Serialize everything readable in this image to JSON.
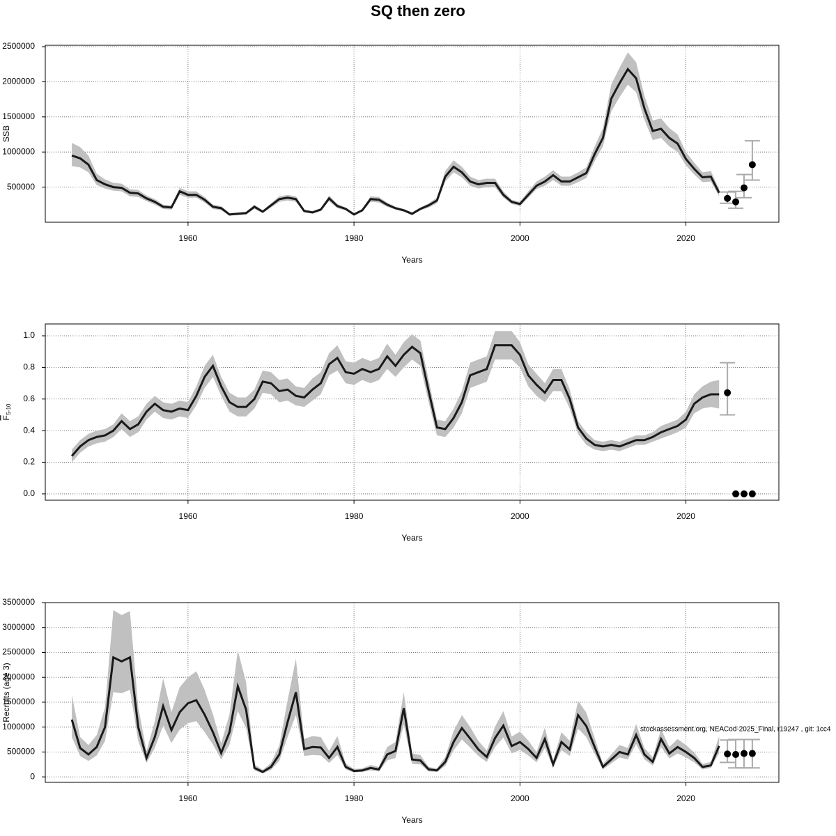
{
  "title": "SQ then zero",
  "footnote": "stockassessment.org, NEACod-2025_Final, r19247 , git: 1cc4",
  "chart_data": [
    {
      "type": "line",
      "xlabel": "Years",
      "ylabel": "SSB",
      "xlim": [
        1942.8,
        2031.2
      ],
      "xticks": [
        1960,
        1980,
        2000,
        2020
      ],
      "ylim": [
        0,
        2520000
      ],
      "yticks": [
        500000,
        1000000,
        1500000,
        2000000,
        2500000
      ],
      "grid": true,
      "line_color": "#1a1a1a",
      "band_color": "#c0c0c0",
      "point_color": "#000000",
      "errorbar_color": "#aaaaaa",
      "x": [
        1946,
        1947,
        1948,
        1949,
        1950,
        1951,
        1952,
        1953,
        1954,
        1955,
        1956,
        1957,
        1958,
        1959,
        1960,
        1961,
        1962,
        1963,
        1964,
        1965,
        1966,
        1967,
        1968,
        1969,
        1970,
        1971,
        1972,
        1973,
        1974,
        1975,
        1976,
        1977,
        1978,
        1979,
        1980,
        1981,
        1982,
        1983,
        1984,
        1985,
        1986,
        1987,
        1988,
        1989,
        1990,
        1991,
        1992,
        1993,
        1994,
        1995,
        1996,
        1997,
        1998,
        1999,
        2000,
        2001,
        2002,
        2003,
        2004,
        2005,
        2006,
        2007,
        2008,
        2009,
        2010,
        2011,
        2012,
        2013,
        2014,
        2015,
        2016,
        2017,
        2018,
        2019,
        2020,
        2021,
        2022,
        2023,
        2024
      ],
      "values": [
        950000,
        910000,
        820000,
        600000,
        540000,
        500000,
        490000,
        420000,
        410000,
        340000,
        290000,
        220000,
        210000,
        440000,
        390000,
        390000,
        320000,
        220000,
        200000,
        110000,
        120000,
        130000,
        220000,
        150000,
        240000,
        330000,
        350000,
        330000,
        160000,
        140000,
        180000,
        340000,
        230000,
        190000,
        110000,
        170000,
        330000,
        320000,
        250000,
        200000,
        170000,
        120000,
        190000,
        240000,
        310000,
        650000,
        790000,
        710000,
        580000,
        540000,
        560000,
        560000,
        390000,
        290000,
        260000,
        390000,
        520000,
        580000,
        670000,
        580000,
        580000,
        640000,
        700000,
        970000,
        1200000,
        1760000,
        1980000,
        2180000,
        2050000,
        1620000,
        1300000,
        1330000,
        1200000,
        1120000,
        900000,
        760000,
        640000,
        650000,
        420000
      ],
      "lower": [
        800000,
        780000,
        710000,
        530000,
        480000,
        450000,
        440000,
        370000,
        360000,
        300000,
        250000,
        190000,
        180000,
        390000,
        350000,
        350000,
        280000,
        190000,
        170000,
        100000,
        100000,
        110000,
        190000,
        130000,
        210000,
        290000,
        310000,
        290000,
        140000,
        120000,
        160000,
        300000,
        200000,
        170000,
        100000,
        150000,
        290000,
        280000,
        220000,
        180000,
        150000,
        100000,
        170000,
        210000,
        270000,
        580000,
        710000,
        640000,
        520000,
        480000,
        500000,
        500000,
        350000,
        260000,
        230000,
        350000,
        470000,
        520000,
        600000,
        520000,
        520000,
        570000,
        630000,
        870000,
        1080000,
        1580000,
        1780000,
        1960000,
        1850000,
        1460000,
        1170000,
        1200000,
        1080000,
        1000000,
        810000,
        680000,
        570000,
        580000,
        370000
      ],
      "upper": [
        1130000,
        1070000,
        950000,
        690000,
        610000,
        560000,
        550000,
        470000,
        460000,
        380000,
        330000,
        250000,
        240000,
        490000,
        440000,
        440000,
        360000,
        250000,
        230000,
        130000,
        140000,
        150000,
        250000,
        170000,
        270000,
        370000,
        390000,
        370000,
        180000,
        160000,
        200000,
        380000,
        260000,
        210000,
        130000,
        190000,
        370000,
        360000,
        280000,
        220000,
        190000,
        140000,
        210000,
        270000,
        350000,
        730000,
        880000,
        790000,
        650000,
        600000,
        620000,
        620000,
        440000,
        320000,
        290000,
        440000,
        580000,
        650000,
        740000,
        650000,
        650000,
        710000,
        780000,
        1080000,
        1340000,
        1960000,
        2200000,
        2420000,
        2280000,
        1800000,
        1450000,
        1480000,
        1340000,
        1250000,
        1000000,
        850000,
        710000,
        730000,
        470000
      ],
      "forecast": {
        "x": [
          2025,
          2026,
          2027,
          2028
        ],
        "values": [
          340000,
          290000,
          490000,
          820000
        ],
        "lower": [
          270000,
          200000,
          350000,
          600000
        ],
        "upper": [
          430000,
          440000,
          680000,
          1160000
        ]
      }
    },
    {
      "type": "line",
      "xlabel": "Years",
      "ylabel": "F",
      "ylabel_sub": "5-10",
      "xlim": [
        1942.8,
        2031.2
      ],
      "xticks": [
        1960,
        1980,
        2000,
        2020
      ],
      "ylim": [
        -0.04,
        1.075
      ],
      "yticks": [
        {
          "value": 0,
          "label": "0.0"
        },
        {
          "value": 0.2,
          "label": "0.2"
        },
        {
          "value": 0.4,
          "label": "0.4"
        },
        {
          "value": 0.6,
          "label": "0.6"
        },
        {
          "value": 0.8,
          "label": "0.8"
        },
        {
          "value": 1,
          "label": "1.0"
        }
      ],
      "grid": true,
      "line_color": "#1a1a1a",
      "band_color": "#c0c0c0",
      "point_color": "#000000",
      "errorbar_color": "#aaaaaa",
      "x": [
        1946,
        1947,
        1948,
        1949,
        1950,
        1951,
        1952,
        1953,
        1954,
        1955,
        1956,
        1957,
        1958,
        1959,
        1960,
        1961,
        1962,
        1963,
        1964,
        1965,
        1966,
        1967,
        1968,
        1969,
        1970,
        1971,
        1972,
        1973,
        1974,
        1975,
        1976,
        1977,
        1978,
        1979,
        1980,
        1981,
        1982,
        1983,
        1984,
        1985,
        1986,
        1987,
        1988,
        1989,
        1990,
        1991,
        1992,
        1993,
        1994,
        1995,
        1996,
        1997,
        1998,
        1999,
        2000,
        2001,
        2002,
        2003,
        2004,
        2005,
        2006,
        2007,
        2008,
        2009,
        2010,
        2011,
        2012,
        2013,
        2014,
        2015,
        2016,
        2017,
        2018,
        2019,
        2020,
        2021,
        2022,
        2023,
        2024
      ],
      "values": [
        0.24,
        0.3,
        0.34,
        0.36,
        0.37,
        0.4,
        0.46,
        0.41,
        0.44,
        0.52,
        0.57,
        0.53,
        0.52,
        0.54,
        0.53,
        0.62,
        0.74,
        0.81,
        0.68,
        0.58,
        0.55,
        0.55,
        0.6,
        0.71,
        0.7,
        0.65,
        0.66,
        0.62,
        0.61,
        0.66,
        0.7,
        0.82,
        0.86,
        0.77,
        0.76,
        0.79,
        0.77,
        0.79,
        0.87,
        0.81,
        0.88,
        0.93,
        0.89,
        0.65,
        0.42,
        0.41,
        0.48,
        0.58,
        0.75,
        0.77,
        0.79,
        0.94,
        0.94,
        0.94,
        0.88,
        0.75,
        0.69,
        0.64,
        0.72,
        0.72,
        0.6,
        0.42,
        0.35,
        0.31,
        0.3,
        0.31,
        0.3,
        0.32,
        0.34,
        0.34,
        0.36,
        0.39,
        0.41,
        0.43,
        0.47,
        0.57,
        0.61,
        0.63,
        0.63
      ],
      "lower": [
        0.2,
        0.26,
        0.3,
        0.32,
        0.33,
        0.36,
        0.41,
        0.36,
        0.39,
        0.47,
        0.52,
        0.48,
        0.47,
        0.49,
        0.48,
        0.56,
        0.67,
        0.74,
        0.62,
        0.52,
        0.49,
        0.49,
        0.54,
        0.64,
        0.63,
        0.58,
        0.59,
        0.56,
        0.55,
        0.59,
        0.63,
        0.75,
        0.78,
        0.7,
        0.69,
        0.72,
        0.7,
        0.72,
        0.79,
        0.74,
        0.8,
        0.85,
        0.81,
        0.58,
        0.37,
        0.36,
        0.42,
        0.51,
        0.67,
        0.69,
        0.71,
        0.85,
        0.85,
        0.85,
        0.8,
        0.68,
        0.62,
        0.58,
        0.65,
        0.65,
        0.54,
        0.38,
        0.31,
        0.28,
        0.27,
        0.28,
        0.27,
        0.29,
        0.31,
        0.31,
        0.33,
        0.35,
        0.37,
        0.39,
        0.42,
        0.51,
        0.54,
        0.55,
        0.54
      ],
      "upper": [
        0.28,
        0.34,
        0.38,
        0.4,
        0.41,
        0.44,
        0.51,
        0.46,
        0.49,
        0.57,
        0.62,
        0.58,
        0.57,
        0.59,
        0.58,
        0.68,
        0.81,
        0.88,
        0.74,
        0.64,
        0.61,
        0.61,
        0.66,
        0.78,
        0.77,
        0.72,
        0.73,
        0.68,
        0.67,
        0.73,
        0.77,
        0.89,
        0.94,
        0.84,
        0.83,
        0.86,
        0.84,
        0.86,
        0.95,
        0.88,
        0.96,
        1.01,
        0.97,
        0.72,
        0.47,
        0.46,
        0.54,
        0.65,
        0.83,
        0.85,
        0.87,
        1.03,
        1.03,
        1.03,
        0.96,
        0.82,
        0.76,
        0.7,
        0.79,
        0.79,
        0.66,
        0.46,
        0.39,
        0.34,
        0.33,
        0.34,
        0.33,
        0.35,
        0.37,
        0.37,
        0.39,
        0.43,
        0.45,
        0.47,
        0.52,
        0.63,
        0.68,
        0.71,
        0.72
      ],
      "forecast": {
        "x": [
          2025,
          2026,
          2027,
          2028
        ],
        "values": [
          0.64,
          0,
          0,
          0
        ],
        "lower": [
          0.5,
          null,
          null,
          null
        ],
        "upper": [
          0.83,
          null,
          null,
          null
        ]
      }
    },
    {
      "type": "line",
      "xlabel": "Years",
      "ylabel": "Recruits (age 3)",
      "xlim": [
        1942.8,
        2031.2
      ],
      "xticks": [
        1960,
        1980,
        2000,
        2020
      ],
      "ylim": [
        -110000,
        3500000
      ],
      "yticks": [
        0,
        500000,
        1000000,
        1500000,
        2000000,
        2500000,
        3000000,
        3500000
      ],
      "grid": true,
      "line_color": "#1a1a1a",
      "band_color": "#c0c0c0",
      "point_color": "#000000",
      "errorbar_color": "#aaaaaa",
      "x": [
        1946,
        1947,
        1948,
        1949,
        1950,
        1951,
        1952,
        1953,
        1954,
        1955,
        1956,
        1957,
        1958,
        1959,
        1960,
        1961,
        1962,
        1963,
        1964,
        1965,
        1966,
        1967,
        1968,
        1969,
        1970,
        1971,
        1972,
        1973,
        1974,
        1975,
        1976,
        1977,
        1978,
        1979,
        1980,
        1981,
        1982,
        1983,
        1984,
        1985,
        1986,
        1987,
        1988,
        1989,
        1990,
        1991,
        1992,
        1993,
        1994,
        1995,
        1996,
        1997,
        1998,
        1999,
        2000,
        2001,
        2002,
        2003,
        2004,
        2005,
        2006,
        2007,
        2008,
        2009,
        2010,
        2011,
        2012,
        2013,
        2014,
        2015,
        2016,
        2017,
        2018,
        2019,
        2020,
        2021,
        2022,
        2023,
        2024
      ],
      "values": [
        1150000,
        580000,
        450000,
        600000,
        1000000,
        2400000,
        2320000,
        2400000,
        1000000,
        380000,
        800000,
        1420000,
        940000,
        1300000,
        1480000,
        1540000,
        1250000,
        900000,
        480000,
        900000,
        1820000,
        1350000,
        180000,
        100000,
        200000,
        450000,
        1100000,
        1700000,
        560000,
        600000,
        590000,
        380000,
        600000,
        200000,
        120000,
        130000,
        180000,
        150000,
        450000,
        520000,
        1380000,
        350000,
        330000,
        150000,
        130000,
        300000,
        700000,
        980000,
        770000,
        550000,
        400000,
        780000,
        1030000,
        620000,
        700000,
        560000,
        380000,
        760000,
        250000,
        700000,
        550000,
        1240000,
        1020000,
        600000,
        200000,
        350000,
        500000,
        450000,
        840000,
        450000,
        300000,
        760000,
        470000,
        600000,
        500000,
        380000,
        200000,
        230000,
        620000
      ],
      "lower": [
        800000,
        420000,
        320000,
        430000,
        720000,
        1700000,
        1680000,
        1750000,
        720000,
        280000,
        580000,
        1030000,
        680000,
        950000,
        1080000,
        1120000,
        900000,
        650000,
        350000,
        650000,
        1320000,
        980000,
        130000,
        70000,
        140000,
        320000,
        800000,
        1240000,
        420000,
        440000,
        430000,
        280000,
        440000,
        150000,
        90000,
        100000,
        130000,
        110000,
        330000,
        380000,
        1050000,
        260000,
        250000,
        110000,
        100000,
        220000,
        530000,
        750000,
        590000,
        420000,
        300000,
        600000,
        790000,
        470000,
        540000,
        430000,
        290000,
        580000,
        190000,
        540000,
        420000,
        970000,
        800000,
        460000,
        150000,
        270000,
        390000,
        350000,
        660000,
        350000,
        230000,
        600000,
        370000,
        470000,
        390000,
        290000,
        150000,
        180000,
        480000
      ],
      "upper": [
        1650000,
        800000,
        640000,
        840000,
        1400000,
        3350000,
        3250000,
        3330000,
        1400000,
        520000,
        1120000,
        1980000,
        1300000,
        1800000,
        2000000,
        2120000,
        1750000,
        1260000,
        670000,
        1260000,
        2540000,
        1900000,
        250000,
        140000,
        280000,
        630000,
        1540000,
        2370000,
        760000,
        820000,
        800000,
        520000,
        820000,
        270000,
        160000,
        170000,
        240000,
        200000,
        600000,
        700000,
        1700000,
        470000,
        440000,
        200000,
        170000,
        400000,
        920000,
        1240000,
        1000000,
        720000,
        530000,
        1010000,
        1320000,
        810000,
        910000,
        730000,
        500000,
        990000,
        330000,
        900000,
        720000,
        1530000,
        1290000,
        780000,
        260000,
        450000,
        640000,
        580000,
        1060000,
        580000,
        390000,
        960000,
        600000,
        760000,
        640000,
        490000,
        260000,
        300000,
        820000
      ],
      "forecast": {
        "x": [
          2025,
          2026,
          2027,
          2028
        ],
        "values": [
          460000,
          450000,
          470000,
          470000
        ],
        "lower": [
          290000,
          180000,
          180000,
          180000
        ],
        "upper": [
          740000,
          750000,
          750000,
          750000
        ]
      }
    }
  ]
}
